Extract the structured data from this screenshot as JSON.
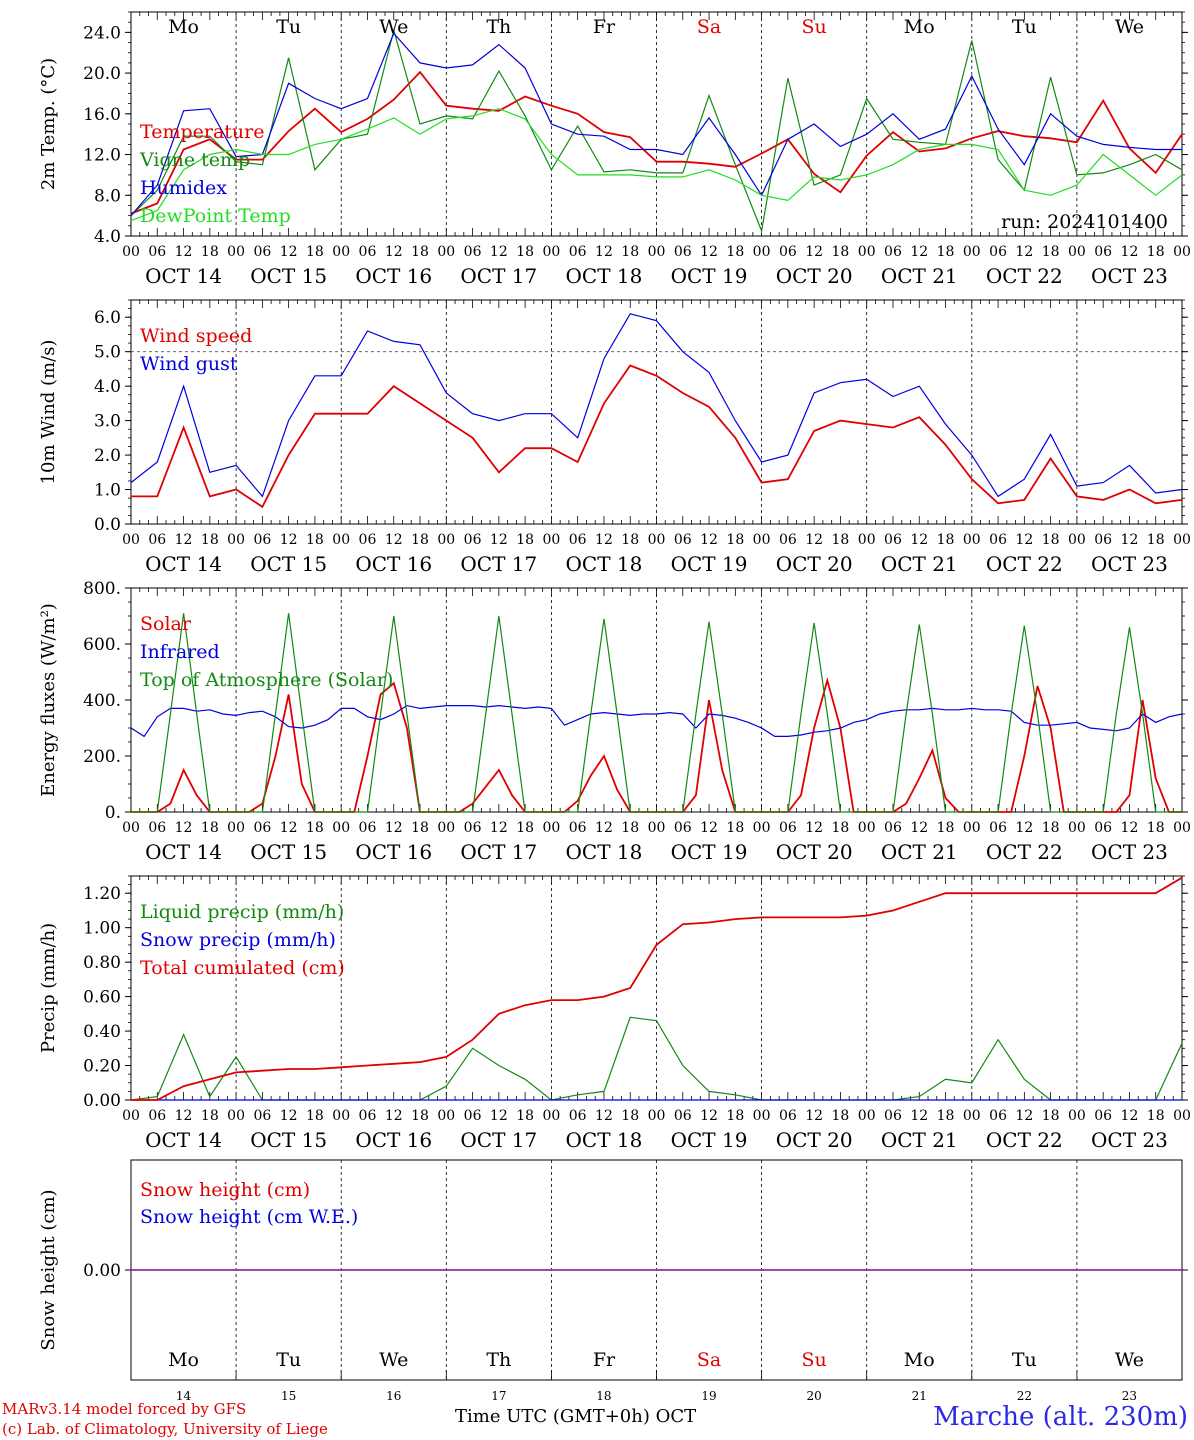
{
  "colors": {
    "red": "#e00000",
    "green": "#128a12",
    "blue": "#0000e0",
    "lightgreen": "#22dd22",
    "purple": "#9933aa"
  },
  "days": [
    "Mo",
    "Tu",
    "We",
    "Th",
    "Fr",
    "Sa",
    "Su",
    "Mo",
    "Tu",
    "We"
  ],
  "weekend_days": [
    "Sa",
    "Su"
  ],
  "dates": [
    "OCT 14",
    "OCT 15",
    "OCT 16",
    "OCT 17",
    "OCT 18",
    "OCT 19",
    "OCT 20",
    "OCT 21",
    "OCT 22",
    "OCT 23"
  ],
  "hour_ticks": [
    "00",
    "06",
    "12",
    "18"
  ],
  "hour_end": "00",
  "bottom_days": [
    "14",
    "15",
    "16",
    "17",
    "18",
    "19",
    "20",
    "21",
    "22",
    "23"
  ],
  "footer": {
    "model": "MARv3.14 model forced by GFS",
    "lab": "(c) Lab. of Climatology, University of Liege",
    "xlabel": "Time UTC (GMT+0h) OCT",
    "station": "Marche (alt. 230m)"
  },
  "chart_data": [
    {
      "type": "line",
      "ylabel": "2m Temp. (°C)",
      "ylim": [
        4,
        26
      ],
      "yticks": [
        "4.0",
        "8.0",
        "12.0",
        "16.0",
        "20.0",
        "24.0"
      ],
      "annotation": "run: 2024101400",
      "x_hours": [
        0,
        6,
        12,
        18,
        24,
        30,
        36,
        42,
        48,
        54,
        60,
        66,
        72,
        78,
        84,
        90,
        96,
        102,
        108,
        114,
        120,
        126,
        132,
        138,
        144,
        150,
        156,
        162,
        168,
        174,
        180,
        186,
        192,
        198,
        204,
        210,
        216,
        222,
        228,
        234,
        240
      ],
      "series": [
        {
          "name": "Temperature",
          "color": "red",
          "values": [
            6.2,
            7.2,
            12.5,
            13.5,
            11.5,
            11.5,
            14.3,
            16.5,
            14.2,
            15.5,
            17.4,
            20.1,
            16.8,
            16.5,
            16.3,
            17.7,
            16.8,
            16.0,
            14.2,
            13.7,
            11.3,
            11.3,
            11.1,
            10.8,
            12.1,
            13.5,
            10.1,
            8.3,
            11.9,
            14.2,
            12.3,
            12.6,
            13.6,
            14.3,
            13.8,
            13.6,
            13.2,
            17.3,
            12.6,
            10.2,
            14.0
          ]
        },
        {
          "name": "Vigne temp",
          "color": "green",
          "values": [
            6.0,
            8.5,
            13.8,
            13.8,
            11.3,
            11.0,
            21.5,
            10.5,
            13.5,
            14.0,
            24.2,
            15.0,
            15.8,
            15.5,
            20.2,
            15.8,
            10.5,
            14.8,
            10.3,
            10.5,
            10.2,
            10.2,
            17.8,
            11.0,
            4.5,
            19.5,
            9.0,
            10.0,
            17.5,
            13.5,
            13.2,
            13.0,
            23.2,
            11.5,
            8.5,
            19.6,
            10.0,
            10.2,
            11.0,
            12.0,
            10.5
          ]
        },
        {
          "name": "Humidex",
          "color": "blue",
          "values": [
            6.0,
            9.0,
            16.3,
            16.5,
            11.8,
            12.0,
            19.0,
            17.5,
            16.5,
            17.5,
            23.9,
            21.0,
            20.5,
            20.8,
            22.8,
            20.5,
            15.0,
            14.0,
            13.8,
            12.5,
            12.5,
            12.0,
            15.6,
            12.0,
            8.0,
            13.5,
            15.0,
            12.8,
            14.0,
            16.0,
            13.5,
            14.5,
            19.7,
            14.5,
            11.0,
            16.0,
            13.8,
            13.0,
            12.7,
            12.5,
            12.5
          ]
        },
        {
          "name": "DewPoint Temp",
          "color": "lightgreen",
          "values": [
            5.5,
            6.5,
            10.5,
            12.0,
            12.5,
            12.0,
            12.0,
            13.0,
            13.5,
            14.5,
            15.6,
            14.0,
            15.5,
            15.8,
            16.5,
            15.5,
            12.0,
            10.0,
            10.0,
            10.0,
            9.8,
            9.8,
            10.5,
            9.5,
            8.0,
            7.5,
            9.8,
            9.5,
            10.0,
            11.0,
            12.5,
            13.0,
            13.0,
            12.5,
            8.5,
            8.0,
            9.0,
            12.0,
            10.0,
            8.0,
            10.0
          ]
        }
      ]
    },
    {
      "type": "line",
      "ylabel": "10m Wind (m/s)",
      "ylim": [
        0,
        6.5
      ],
      "yticks": [
        "0.0",
        "1.0",
        "2.0",
        "3.0",
        "4.0",
        "5.0",
        "6.0"
      ],
      "dashed_line": 5.0,
      "x_hours": [
        0,
        6,
        12,
        18,
        24,
        30,
        36,
        42,
        48,
        54,
        60,
        66,
        72,
        78,
        84,
        90,
        96,
        102,
        108,
        114,
        120,
        126,
        132,
        138,
        144,
        150,
        156,
        162,
        168,
        174,
        180,
        186,
        192,
        198,
        204,
        210,
        216,
        222,
        228,
        234,
        240
      ],
      "series": [
        {
          "name": "Wind speed",
          "color": "red",
          "values": [
            0.8,
            0.8,
            2.8,
            0.8,
            1.0,
            0.5,
            2.0,
            3.2,
            3.2,
            3.2,
            4.0,
            3.5,
            3.0,
            2.5,
            1.5,
            2.2,
            2.2,
            1.8,
            3.5,
            4.6,
            4.3,
            3.8,
            3.4,
            2.5,
            1.2,
            1.3,
            2.7,
            3.0,
            2.9,
            2.8,
            3.1,
            2.3,
            1.3,
            0.6,
            0.7,
            1.9,
            0.8,
            0.7,
            1.0,
            0.6,
            0.7
          ]
        },
        {
          "name": "Wind gust",
          "color": "blue",
          "values": [
            1.2,
            1.8,
            4.0,
            1.5,
            1.7,
            0.8,
            3.0,
            4.3,
            4.3,
            5.6,
            5.3,
            5.2,
            3.8,
            3.2,
            3.0,
            3.2,
            3.2,
            2.5,
            4.8,
            6.1,
            5.9,
            5.0,
            4.4,
            3.0,
            1.8,
            2.0,
            3.8,
            4.1,
            4.2,
            3.7,
            4.0,
            2.9,
            2.0,
            0.8,
            1.3,
            2.6,
            1.1,
            1.2,
            1.7,
            0.9,
            1.0
          ]
        }
      ]
    },
    {
      "type": "line",
      "ylabel": "Energy fluxes (W/m²)",
      "ylim": [
        0,
        800
      ],
      "yticks": [
        "0.",
        "200.",
        "400.",
        "600.",
        "800."
      ],
      "x_hours": [
        0,
        3,
        6,
        9,
        12,
        15,
        18,
        21,
        24,
        27,
        30,
        33,
        36,
        39,
        42,
        45,
        48,
        51,
        54,
        57,
        60,
        63,
        66,
        69,
        72,
        75,
        78,
        81,
        84,
        87,
        90,
        93,
        96,
        99,
        102,
        105,
        108,
        111,
        114,
        117,
        120,
        123,
        126,
        129,
        132,
        135,
        138,
        141,
        144,
        147,
        150,
        153,
        156,
        159,
        162,
        165,
        168,
        171,
        174,
        177,
        180,
        183,
        186,
        189,
        192,
        195,
        198,
        201,
        204,
        207,
        210,
        213,
        216,
        219,
        222,
        225,
        228,
        231,
        234,
        237,
        240
      ],
      "series": [
        {
          "name": "Solar",
          "color": "red",
          "values": [
            0,
            0,
            0,
            30,
            150,
            60,
            0,
            0,
            0,
            0,
            30,
            200,
            420,
            100,
            0,
            0,
            0,
            0,
            200,
            420,
            460,
            300,
            0,
            0,
            0,
            0,
            30,
            90,
            150,
            60,
            0,
            0,
            0,
            0,
            40,
            130,
            200,
            80,
            0,
            0,
            0,
            0,
            0,
            60,
            400,
            150,
            0,
            0,
            0,
            0,
            0,
            60,
            300,
            470,
            300,
            0,
            0,
            0,
            0,
            30,
            120,
            220,
            50,
            0,
            0,
            0,
            0,
            0,
            200,
            450,
            300,
            0,
            0,
            0,
            0,
            0,
            60,
            400,
            120,
            0,
            0
          ]
        },
        {
          "name": "Infrared",
          "color": "blue",
          "values": [
            300,
            270,
            340,
            370,
            370,
            360,
            365,
            350,
            345,
            355,
            360,
            340,
            305,
            300,
            310,
            330,
            370,
            370,
            340,
            330,
            350,
            380,
            370,
            375,
            380,
            380,
            380,
            375,
            380,
            375,
            370,
            375,
            370,
            310,
            330,
            350,
            355,
            350,
            345,
            350,
            350,
            355,
            350,
            300,
            350,
            345,
            335,
            320,
            300,
            270,
            270,
            275,
            285,
            290,
            300,
            320,
            330,
            350,
            360,
            365,
            365,
            370,
            365,
            365,
            370,
            365,
            365,
            360,
            320,
            310,
            310,
            315,
            320,
            300,
            295,
            290,
            300,
            350,
            320,
            340,
            350
          ]
        },
        {
          "name": "Top of Atmosphere (Solar)",
          "color": "green",
          "values": [
            0,
            0,
            0,
            350,
            710,
            350,
            0,
            0,
            0,
            0,
            0,
            350,
            710,
            350,
            0,
            0,
            0,
            0,
            0,
            350,
            700,
            350,
            0,
            0,
            0,
            0,
            0,
            350,
            700,
            350,
            0,
            0,
            0,
            0,
            0,
            350,
            690,
            350,
            0,
            0,
            0,
            0,
            0,
            350,
            680,
            350,
            0,
            0,
            0,
            0,
            0,
            350,
            675,
            350,
            0,
            0,
            0,
            0,
            0,
            350,
            670,
            350,
            0,
            0,
            0,
            0,
            0,
            350,
            665,
            350,
            0,
            0,
            0,
            0,
            0,
            350,
            660,
            350,
            0,
            0,
            0
          ]
        }
      ]
    },
    {
      "type": "line",
      "ylabel": "Precip (mm/h)",
      "ylim": [
        0,
        1.3
      ],
      "yticks": [
        "0.00",
        "0.20",
        "0.40",
        "0.60",
        "0.80",
        "1.00",
        "1.20"
      ],
      "x_hours": [
        0,
        6,
        12,
        18,
        24,
        30,
        36,
        42,
        48,
        54,
        60,
        66,
        72,
        78,
        84,
        90,
        96,
        102,
        108,
        114,
        120,
        126,
        132,
        138,
        144,
        150,
        156,
        162,
        168,
        174,
        180,
        186,
        192,
        198,
        204,
        210,
        216,
        222,
        228,
        234,
        240
      ],
      "series": [
        {
          "name": "Liquid precip (mm/h)",
          "color": "green",
          "values": [
            0,
            0.02,
            0.38,
            0.02,
            0.25,
            0,
            0,
            0,
            0,
            0,
            0,
            0,
            0.08,
            0.3,
            0.2,
            0.12,
            0,
            0.03,
            0.05,
            0.48,
            0.46,
            0.2,
            0.05,
            0.03,
            0,
            0,
            0,
            0,
            0,
            0,
            0.02,
            0.12,
            0.1,
            0.35,
            0.12,
            0,
            0,
            0,
            0,
            0,
            0.33
          ]
        },
        {
          "name": "Snow precip (mm/h)",
          "color": "blue",
          "values": [
            0,
            0,
            0,
            0,
            0,
            0,
            0,
            0,
            0,
            0,
            0,
            0,
            0,
            0,
            0,
            0,
            0,
            0,
            0,
            0,
            0,
            0,
            0,
            0,
            0,
            0,
            0,
            0,
            0,
            0,
            0,
            0,
            0,
            0,
            0,
            0,
            0,
            0,
            0,
            0,
            0
          ]
        },
        {
          "name": "Total cumulated (cm)",
          "color": "red",
          "values": [
            0,
            0,
            0.08,
            0.12,
            0.16,
            0.17,
            0.18,
            0.18,
            0.19,
            0.2,
            0.21,
            0.22,
            0.25,
            0.35,
            0.5,
            0.55,
            0.58,
            0.58,
            0.6,
            0.65,
            0.9,
            1.02,
            1.03,
            1.05,
            1.06,
            1.06,
            1.06,
            1.06,
            1.07,
            1.1,
            1.15,
            1.2,
            1.2,
            1.2,
            1.2,
            1.2,
            1.2,
            1.2,
            1.2,
            1.2,
            1.29
          ]
        }
      ]
    },
    {
      "type": "line",
      "ylabel": "Snow height (cm)",
      "ylim": [
        -1,
        1
      ],
      "yticks": [
        "0.00"
      ],
      "x_hours": [
        0,
        240
      ],
      "series": [
        {
          "name": "Snow height (cm)",
          "color": "red",
          "values": [
            0,
            0
          ]
        },
        {
          "name": "Snow height (cm W.E.)",
          "color": "blue",
          "values": [
            0,
            0
          ]
        }
      ]
    }
  ]
}
